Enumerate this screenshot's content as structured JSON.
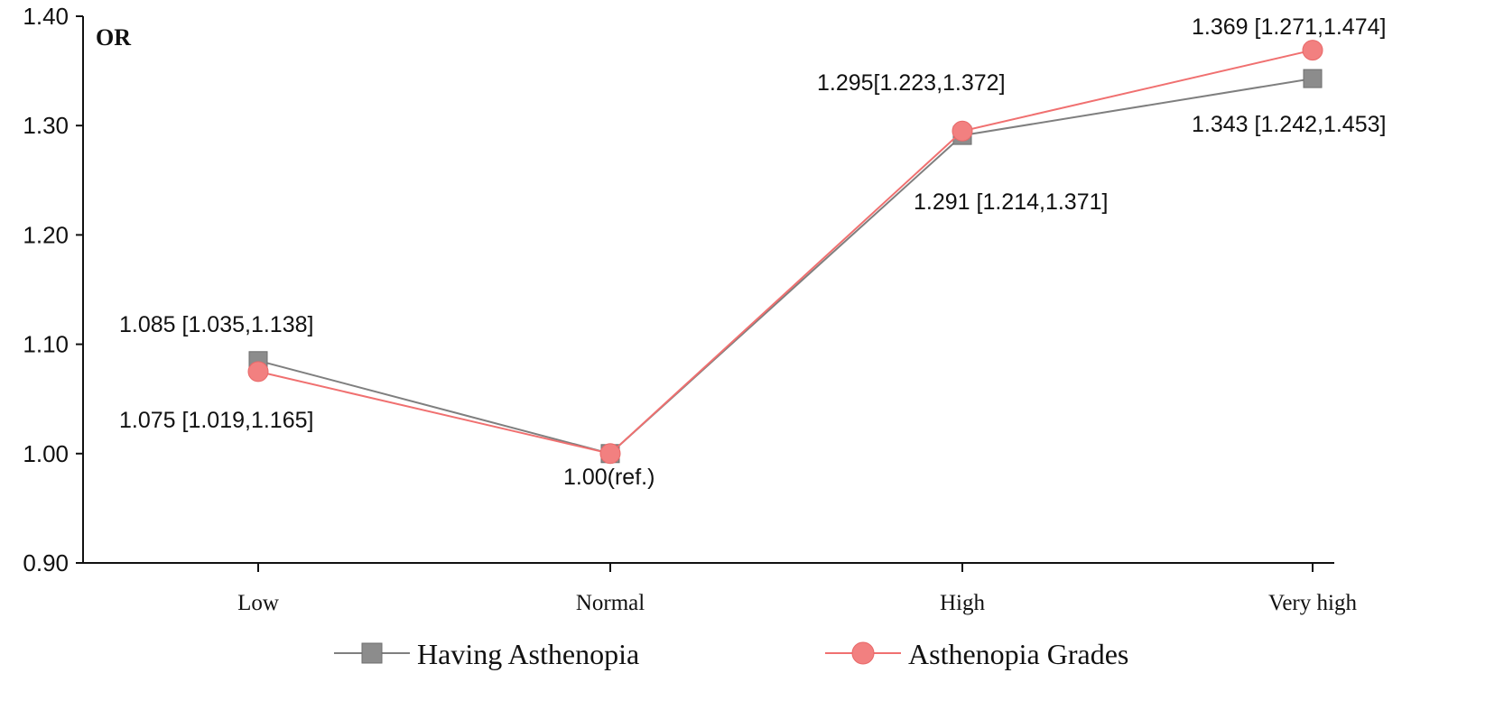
{
  "chart_data": {
    "type": "line",
    "ylabel": "OR",
    "xlabel": "",
    "title": "",
    "categories": [
      "Low",
      "Normal",
      "High",
      "Very high"
    ],
    "ylim": [
      0.9,
      1.4
    ],
    "yticks": [
      0.9,
      1.0,
      1.1,
      1.2,
      1.3,
      1.4
    ],
    "ytick_labels": [
      "0.90",
      "1.00",
      "1.10",
      "1.20",
      "1.30",
      "1.40"
    ],
    "grid": false,
    "legend_position": "bottom",
    "series": [
      {
        "name": "Having Asthenopia",
        "values": [
          1.085,
          1.0,
          1.291,
          1.343
        ],
        "color": "#7f7f7f",
        "marker": "square"
      },
      {
        "name": "Asthenopia Grades",
        "values": [
          1.075,
          1.0,
          1.295,
          1.369
        ],
        "color": "#f07070",
        "marker": "circle"
      }
    ],
    "annotations": [
      "1.085 [1.035,1.138]",
      "1.075 [1.019,1.165]",
      "1.00(ref.)",
      "1.295[1.223,1.372]",
      "1.291 [1.214,1.371]",
      "1.369 [1.271,1.474]",
      "1.343 [1.242,1.453]"
    ]
  }
}
